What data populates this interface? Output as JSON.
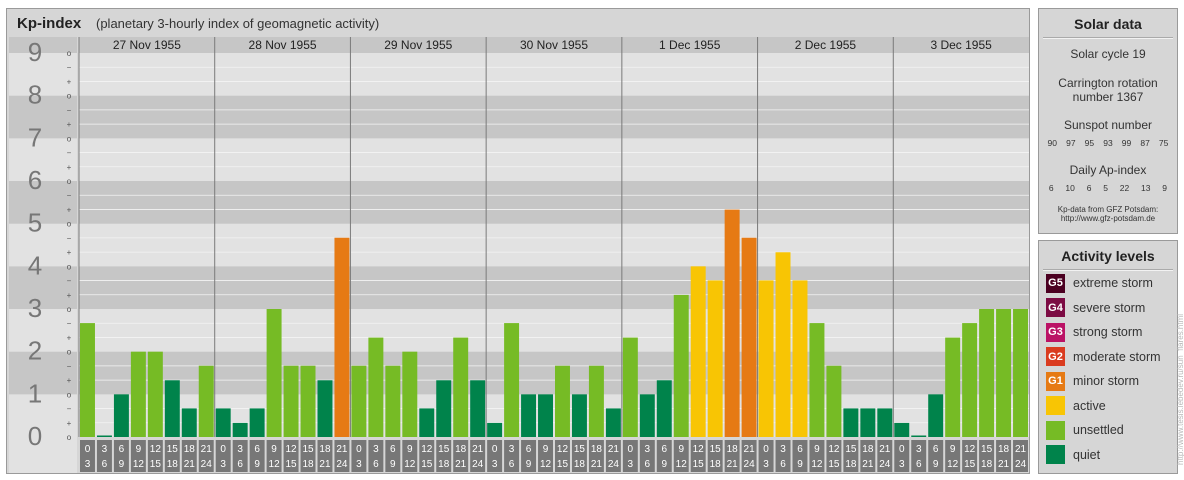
{
  "header": {
    "title": "Kp-index",
    "subtitle": "(planetary 3-hourly index of geomagnetic activity)"
  },
  "chart_data": {
    "type": "bar",
    "y_axis_labels": [
      "0",
      "1",
      "2",
      "3",
      "4",
      "5",
      "6",
      "7",
      "8",
      "9"
    ],
    "minor_ticks": [
      "o",
      "+",
      "−"
    ],
    "ylim": [
      0,
      9
    ],
    "interval_start_labels": [
      "0",
      "3",
      "6",
      "9",
      "12",
      "15",
      "18",
      "21"
    ],
    "interval_end_labels": [
      "3",
      "6",
      "9",
      "12",
      "15",
      "18",
      "21",
      "24"
    ],
    "days": [
      {
        "date": "27 Nov 1955",
        "values": [
          2.67,
          0.0,
          1.0,
          2.0,
          2.0,
          1.33,
          0.67,
          1.67
        ]
      },
      {
        "date": "28 Nov 1955",
        "values": [
          0.67,
          0.33,
          0.67,
          3.0,
          1.67,
          1.67,
          1.33,
          4.67
        ]
      },
      {
        "date": "29 Nov 1955",
        "values": [
          1.67,
          2.33,
          1.67,
          2.0,
          0.67,
          1.33,
          2.33,
          1.33
        ]
      },
      {
        "date": "30 Nov 1955",
        "values": [
          0.33,
          2.67,
          1.0,
          1.0,
          1.67,
          1.0,
          1.67,
          0.67
        ]
      },
      {
        "date": "1 Dec 1955",
        "values": [
          2.33,
          1.0,
          1.33,
          3.33,
          4.0,
          3.67,
          5.33,
          4.67
        ]
      },
      {
        "date": "2 Dec 1955",
        "values": [
          3.67,
          4.33,
          3.67,
          2.67,
          1.67,
          0.67,
          0.67,
          0.67
        ]
      },
      {
        "date": "3 Dec 1955",
        "values": [
          0.33,
          0.0,
          1.0,
          2.33,
          2.67,
          3.0,
          3.0,
          3.0
        ]
      }
    ]
  },
  "colors": {
    "quiet": "#00834b",
    "unsettled": "#76bb25",
    "active": "#f8c504",
    "minor_storm": "#e67a14",
    "moderate_storm": "#da3b1f",
    "strong_storm": "#bb1265",
    "severe_storm": "#7c0b43",
    "extreme_storm": "#4b0021"
  },
  "solar": {
    "title": "Solar data",
    "cycle": "Solar cycle 19",
    "carrington_line1": "Carrington rotation",
    "carrington_line2": "number 1367",
    "sunspot_title": "Sunspot number",
    "sunspot_values": [
      "90",
      "97",
      "95",
      "93",
      "99",
      "87",
      "75"
    ],
    "ap_title": "Daily Ap-index",
    "ap_values": [
      "6",
      "10",
      "6",
      "5",
      "22",
      "13",
      "9"
    ],
    "source_line1": "Kp-data from GFZ Potsdam:",
    "source_line2": "http://www.gfz-potsdam.de"
  },
  "levels": {
    "title": "Activity levels",
    "items": [
      {
        "badge": "G5",
        "label": "extreme storm",
        "color": "#4b0021"
      },
      {
        "badge": "G4",
        "label": "severe storm",
        "color": "#7c0b43"
      },
      {
        "badge": "G3",
        "label": "strong storm",
        "color": "#bb1265"
      },
      {
        "badge": "G2",
        "label": "moderate storm",
        "color": "#da3b1f"
      },
      {
        "badge": "G1",
        "label": "minor storm",
        "color": "#e67a14"
      },
      {
        "badge": "",
        "label": "active",
        "color": "#f8c504"
      },
      {
        "badge": "",
        "label": "unsettled",
        "color": "#76bb25"
      },
      {
        "badge": "",
        "label": "quiet",
        "color": "#00834b"
      }
    ]
  },
  "watermark": "http://www.tesis.lebedev.ru/sun_flares.html"
}
